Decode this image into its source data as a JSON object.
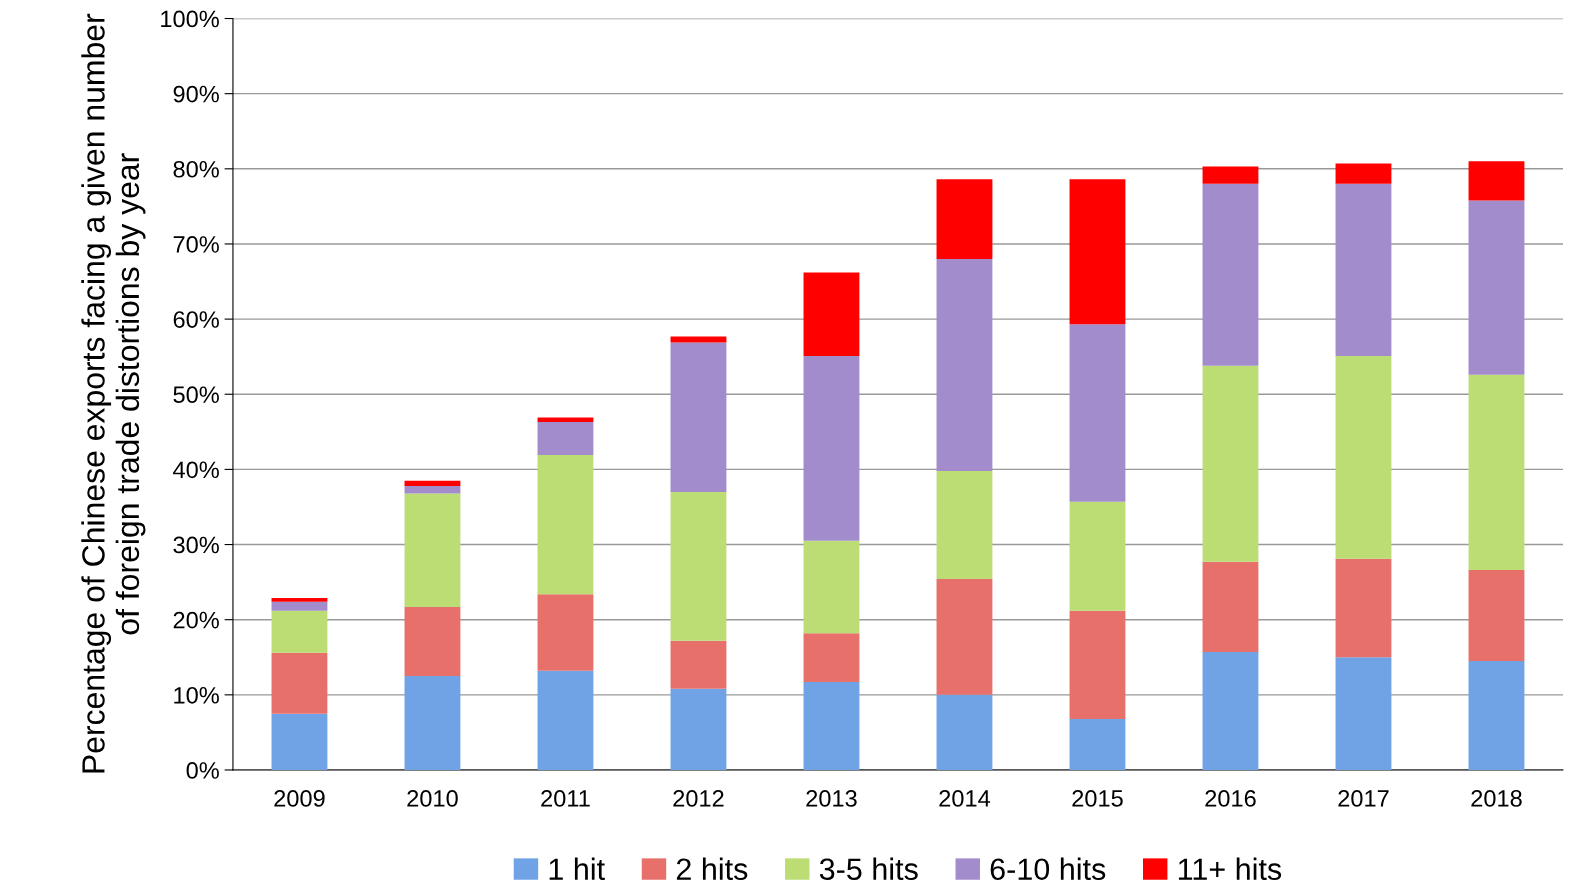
{
  "chart_data": {
    "type": "bar",
    "stacked": true,
    "ylabel": "Percentage of Chinese exports facing a given number of foreign trade distortions by year",
    "categories": [
      "2009",
      "2010",
      "2011",
      "2012",
      "2013",
      "2014",
      "2015",
      "2016",
      "2017",
      "2018"
    ],
    "series": [
      {
        "name": "1 hit",
        "color": "#6fa3e6",
        "values": [
          7.5,
          12.5,
          13.2,
          10.8,
          11.7,
          10.0,
          6.8,
          15.7,
          15.0,
          14.5
        ]
      },
      {
        "name": "2 hits",
        "color": "#e8706b",
        "values": [
          8.1,
          9.2,
          10.2,
          6.4,
          6.5,
          15.4,
          14.4,
          12.0,
          13.1,
          12.1
        ]
      },
      {
        "name": "3-5 hits",
        "color": "#bcdc74",
        "values": [
          5.6,
          15.1,
          18.5,
          19.8,
          12.3,
          14.4,
          14.5,
          26.1,
          27.0,
          26.0
        ]
      },
      {
        "name": "6-10 hits",
        "color": "#a28ccc",
        "values": [
          1.2,
          1.0,
          4.4,
          19.9,
          24.6,
          28.2,
          23.6,
          24.2,
          22.9,
          23.2
        ]
      },
      {
        "name": "11+ hits",
        "color": "#ff0000",
        "values": [
          0.5,
          0.7,
          0.6,
          0.8,
          11.1,
          10.6,
          19.3,
          2.3,
          2.7,
          5.2
        ]
      }
    ],
    "ylim": [
      0,
      100
    ],
    "yticks": [
      {
        "value": 0,
        "label": "0%"
      },
      {
        "value": 10,
        "label": "10%"
      },
      {
        "value": 20,
        "label": "20%"
      },
      {
        "value": 30,
        "label": "30%"
      },
      {
        "value": 40,
        "label": "40%"
      },
      {
        "value": 50,
        "label": "50%"
      },
      {
        "value": 60,
        "label": "60%"
      },
      {
        "value": 70,
        "label": "70%"
      },
      {
        "value": 80,
        "label": "80%"
      },
      {
        "value": 90,
        "label": "90%"
      },
      {
        "value": 100,
        "label": "100%"
      }
    ],
    "grid": "y",
    "legend": "bottom"
  }
}
